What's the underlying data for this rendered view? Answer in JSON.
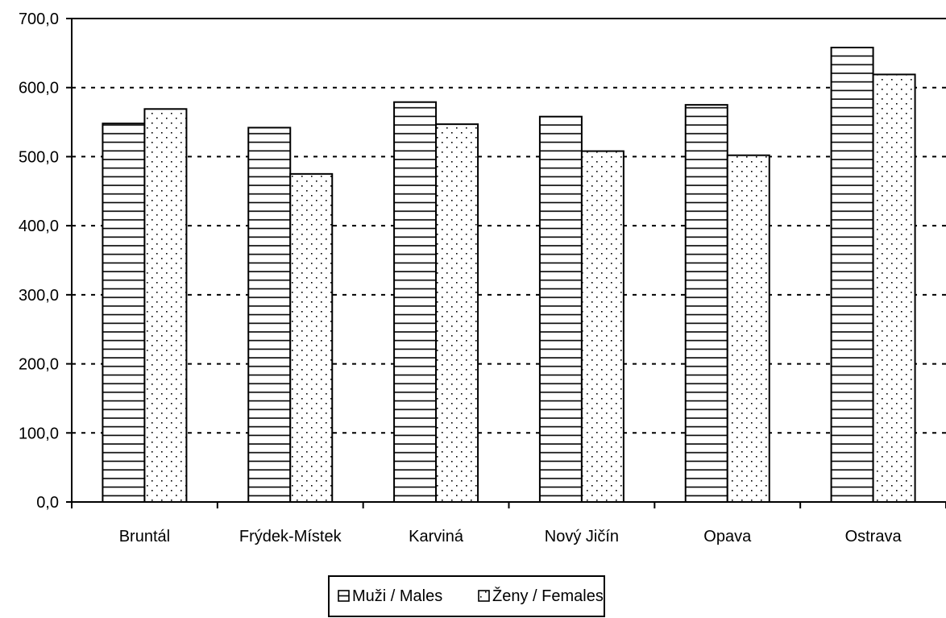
{
  "chart_data": {
    "type": "bar",
    "categories": [
      "Bruntál",
      "Frýdek-Místek",
      "Karviná",
      "Nový Jičín",
      "Opava",
      "Ostrava"
    ],
    "series": [
      {
        "name": "Muži / Males",
        "values": [
          548.0,
          542.0,
          579.0,
          558.0,
          575.0,
          658.0
        ],
        "pattern": "horizontal-stripes"
      },
      {
        "name": "Ženy / Females",
        "values": [
          569.0,
          475.0,
          547.0,
          508.0,
          502.0,
          619.0
        ],
        "pattern": "dots"
      }
    ],
    "ylim": [
      0,
      700
    ],
    "yticks": [
      0,
      100,
      200,
      300,
      400,
      500,
      600,
      700
    ],
    "ytick_labels": [
      "0,0",
      "100,0",
      "200,0",
      "300,0",
      "400,0",
      "500,0",
      "600,0",
      "700,0"
    ],
    "grid": "dashed horizontal",
    "legend_position": "bottom-center",
    "colors": {
      "bar_fill": "#ffffff",
      "stroke": "#000000",
      "background": "#ffffff"
    }
  }
}
